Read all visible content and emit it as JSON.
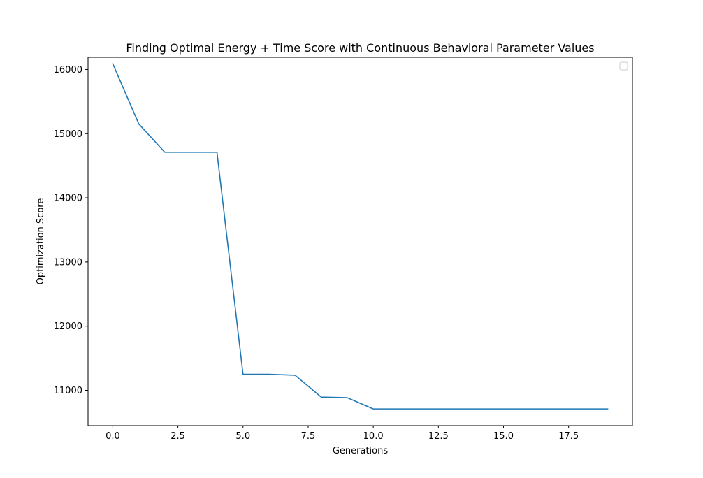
{
  "chart_data": {
    "type": "line",
    "title": "Finding Optimal Energy + Time Score with Continuous Behavioral Parameter Values",
    "xlabel": "Generations",
    "ylabel": "Optimization Score",
    "xlim": [
      -0.95,
      19.95
    ],
    "ylim": [
      10450,
      16190
    ],
    "xticks": [
      0.0,
      2.5,
      5.0,
      7.5,
      10.0,
      12.5,
      15.0,
      17.5
    ],
    "xtick_labels": [
      "0.0",
      "2.5",
      "5.0",
      "7.5",
      "10.0",
      "12.5",
      "15.0",
      "17.5"
    ],
    "yticks": [
      11000,
      12000,
      13000,
      14000,
      15000,
      16000
    ],
    "ytick_labels": [
      "11000",
      "12000",
      "13000",
      "14000",
      "15000",
      "16000"
    ],
    "grid": false,
    "legend": "top-right",
    "series": [
      {
        "color": "#1f77b4",
        "x": [
          0,
          1,
          2,
          3,
          4,
          5,
          6,
          7,
          8,
          9,
          10,
          11,
          12,
          13,
          14,
          15,
          16,
          17,
          18,
          19
        ],
        "y": [
          16090,
          15150,
          14710,
          14710,
          14710,
          11250,
          11250,
          11235,
          10895,
          10885,
          10710,
          10710,
          10710,
          10710,
          10710,
          10710,
          10710,
          10710,
          10710,
          10710
        ]
      }
    ]
  }
}
